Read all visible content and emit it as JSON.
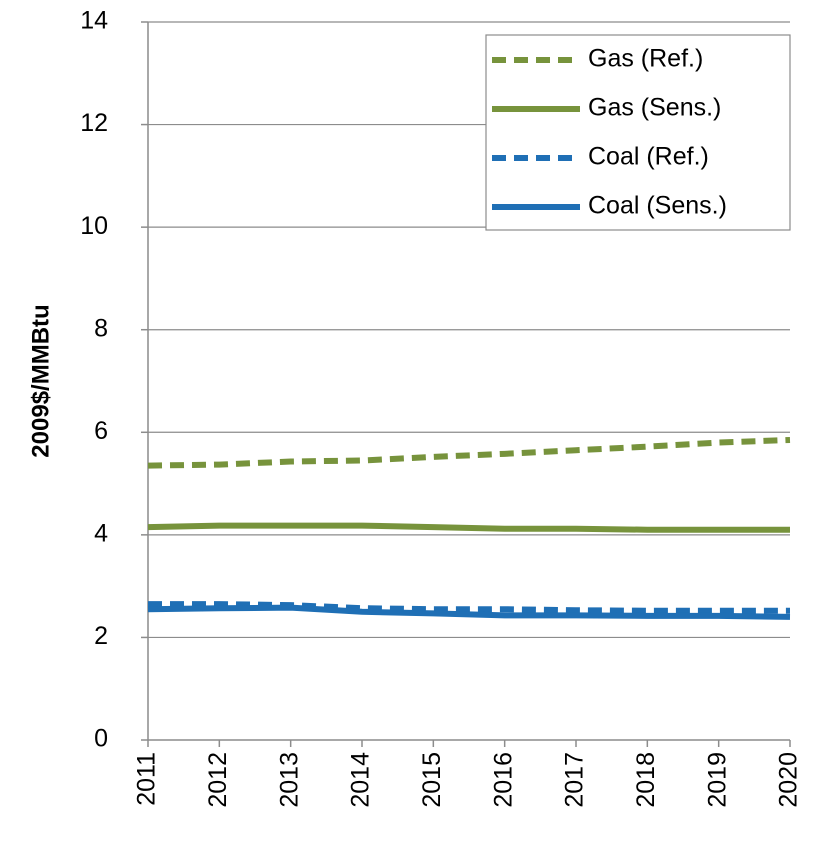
{
  "chart_data": {
    "type": "line",
    "y_label": "2009$/MMBtu",
    "categories": [
      "2011",
      "2012",
      "2013",
      "2014",
      "2015",
      "2016",
      "2017",
      "2018",
      "2019",
      "2020"
    ],
    "series": [
      {
        "name": "Gas (Ref.)",
        "color": "#77933c",
        "linestyle": "dashed",
        "values": [
          5.35,
          5.37,
          5.43,
          5.45,
          5.52,
          5.58,
          5.65,
          5.72,
          5.8,
          5.85
        ]
      },
      {
        "name": "Gas (Sens.)",
        "color": "#77933c",
        "linestyle": "solid",
        "values": [
          4.15,
          4.18,
          4.18,
          4.18,
          4.15,
          4.12,
          4.12,
          4.1,
          4.1,
          4.1
        ]
      },
      {
        "name": "Coal (Ref.)",
        "color": "#1f6fb5",
        "linestyle": "dashed",
        "values": [
          2.65,
          2.65,
          2.63,
          2.57,
          2.55,
          2.55,
          2.53,
          2.52,
          2.52,
          2.52
        ]
      },
      {
        "name": "Coal (Sens.)",
        "color": "#1f6fb5",
        "linestyle": "solid",
        "values": [
          2.55,
          2.57,
          2.58,
          2.5,
          2.47,
          2.43,
          2.43,
          2.42,
          2.42,
          2.4
        ]
      }
    ],
    "ylim": [
      0,
      14
    ],
    "yticks": [
      0,
      2,
      4,
      6,
      8,
      10,
      12,
      14
    ],
    "grid": true,
    "legend": "upper right"
  }
}
